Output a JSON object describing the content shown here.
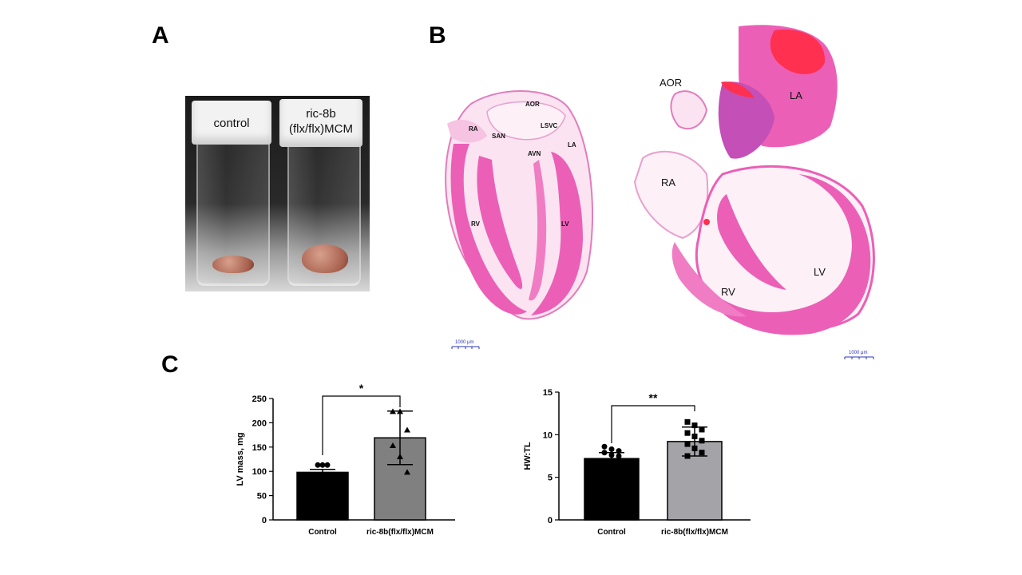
{
  "panels": {
    "a": "A",
    "b": "B",
    "c": "C"
  },
  "photo": {
    "left_tube_label": "control",
    "right_tube_label_line1": "ric-8b",
    "right_tube_label_line2": "(flx/flx)MCM"
  },
  "histology": {
    "left_labels": [
      "RA",
      "SAN",
      "AOR",
      "LSVC",
      "AVN",
      "LA",
      "RV",
      "LV"
    ],
    "right_labels": [
      "AOR",
      "LA",
      "RA",
      "RV",
      "LV"
    ],
    "scale_text": "1000 μm"
  },
  "colors": {
    "control_bar": "#000000",
    "mutant_bar_lv": "#808080",
    "mutant_bar_hw": "#a4a4a8",
    "stain_pink": "#ec5fb6",
    "stain_red": "#ff3050",
    "scale_blue": "#2b35b5"
  },
  "chart_data": [
    {
      "type": "bar",
      "categories": [
        "Control",
        "ric-8b(flx/flx)MCM"
      ],
      "values": [
        98,
        169
      ],
      "error": [
        [
          92,
          104
        ],
        [
          114,
          224
        ]
      ],
      "points": [
        [
          113,
          113,
          113
        ],
        [
          223,
          223,
          185,
          153,
          130,
          98
        ]
      ],
      "markers": [
        "circle",
        "triangle"
      ],
      "ylabel": "LV mass, mg",
      "ylim": [
        0,
        250
      ],
      "yticks": [
        0,
        50,
        100,
        150,
        200,
        250
      ],
      "significance": "*"
    },
    {
      "type": "bar",
      "categories": [
        "Control",
        "ric-8b(flx/flx)MCM"
      ],
      "values": [
        7.2,
        9.2
      ],
      "error": [
        [
          6.5,
          7.9
        ],
        [
          7.5,
          10.9
        ]
      ],
      "points": [
        [
          8.6,
          8.3,
          8.1,
          7.9,
          7.6,
          7.5
        ],
        [
          11.5,
          11.1,
          10.6,
          10.2,
          9.8,
          9.3,
          8.9,
          8.4,
          7.9,
          7.5
        ]
      ],
      "markers": [
        "circle",
        "square"
      ],
      "ylabel": "HW:TL",
      "ylim": [
        0,
        15
      ],
      "yticks": [
        0,
        5,
        10,
        15
      ],
      "significance": "**"
    }
  ]
}
